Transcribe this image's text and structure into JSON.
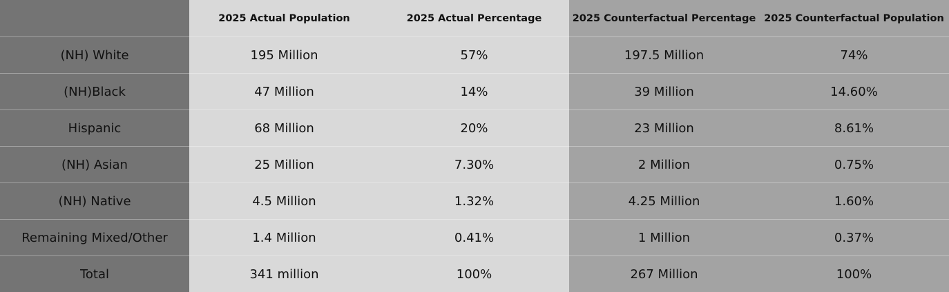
{
  "table": {
    "columns": [
      "2025 Actual Population",
      "2025 Actual Percentage",
      "2025 Counterfactual Percentage",
      "2025 Counterfactual Population"
    ],
    "rows": [
      [
        "(NH) White",
        "195 Million",
        "57%",
        "197.5 Million",
        "74%"
      ],
      [
        "(NH)Black",
        "47 Million",
        "14%",
        "39 Million",
        "14.60%"
      ],
      [
        "Hispanic",
        "68 Million",
        "20%",
        "23 Million",
        "8.61%"
      ],
      [
        "(NH) Asian",
        "25 Million",
        "7.30%",
        "2 Million",
        "0.75%"
      ],
      [
        "(NH) Native",
        "4.5 Million",
        "1.32%",
        "4.25 Million",
        "1.60%"
      ],
      [
        "Remaining Mixed/Other",
        "1.4 Million",
        "0.41%",
        "1 Million",
        "0.37%"
      ],
      [
        "Total",
        "341 million",
        "100%",
        "267 Million",
        "100%"
      ]
    ]
  }
}
